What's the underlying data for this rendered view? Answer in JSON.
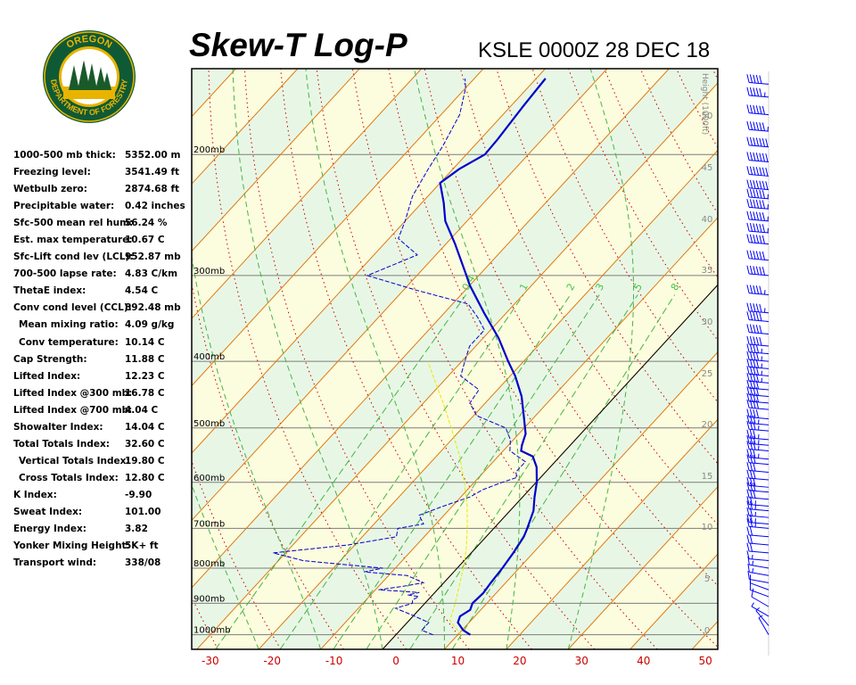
{
  "header": {
    "title": "Skew-T Log-P",
    "station_time": "KSLE 0000Z 28 DEC 18"
  },
  "logo": {
    "top_text": "OREGON",
    "bottom_text": "DEPARTMENT OF FORESTRY",
    "colors": {
      "ring": "#0f5a36",
      "gold": "#e8b400",
      "tree": "#1a5a2a"
    }
  },
  "indices": [
    {
      "label": "1000-500 mb thick:",
      "value": "5352.00 m"
    },
    {
      "label": "Freezing level:",
      "value": "3541.49 ft"
    },
    {
      "label": "Wetbulb zero:",
      "value": "2874.68 ft"
    },
    {
      "label": "Precipitable water:",
      "value": "0.42 inches"
    },
    {
      "label": "Sfc-500 mean rel hum:",
      "value": "56.24 %"
    },
    {
      "label": "Est. max temperature:",
      "value": "10.67 C"
    },
    {
      "label": "Sfc-Lift cond lev (LCL):",
      "value": "952.87 mb"
    },
    {
      "label": "700-500 lapse rate:",
      "value": "4.83 C/km"
    },
    {
      "label": "ThetaE index:",
      "value": "4.54 C"
    },
    {
      "label": "Conv cond level (CCL):",
      "value": "892.48 mb"
    },
    {
      "label": "Mean mixing ratio:",
      "value": "4.09 g/kg",
      "indent": true
    },
    {
      "label": "Conv temperature:",
      "value": "10.14 C",
      "indent": true
    },
    {
      "label": "Cap Strength:",
      "value": "11.88 C"
    },
    {
      "label": "Lifted Index:",
      "value": "12.23 C"
    },
    {
      "label": "Lifted Index @300 mb:",
      "value": "16.78 C"
    },
    {
      "label": "Lifted Index @700 mb:",
      "value": "4.04 C"
    },
    {
      "label": "Showalter Index:",
      "value": "14.04 C"
    },
    {
      "label": "Total Totals Index:",
      "value": "32.60 C"
    },
    {
      "label": "Vertical Totals Index:",
      "value": "19.80 C",
      "indent": true
    },
    {
      "label": "Cross Totals Index:",
      "value": "12.80 C",
      "indent": true
    },
    {
      "label": "K Index:",
      "value": "-9.90"
    },
    {
      "label": "Sweat Index:",
      "value": "101.00"
    },
    {
      "label": "Energy Index:",
      "value": "3.82"
    },
    {
      "label": "Yonker Mixing Height:",
      "value": "5K+ ft"
    },
    {
      "label": "Transport wind:",
      "value": "338/08"
    }
  ],
  "chart_data": {
    "type": "line",
    "x_axis": {
      "ticks": [
        "-30",
        "-20",
        "-10",
        "0",
        "10",
        "20",
        "30",
        "40",
        "50"
      ],
      "range": [
        -33,
        52
      ],
      "color": "#cc0000"
    },
    "pressure_axis": {
      "labels": [
        "200mb",
        "300mb",
        "400mb",
        "500mb",
        "600mb",
        "700mb",
        "800mb",
        "900mb",
        "1000mb"
      ],
      "range_mb": [
        1050,
        150
      ]
    },
    "height_axis": {
      "title": "Height (1000ft)",
      "ticks": [
        "0",
        "5",
        "10",
        "15",
        "20",
        "25",
        "30",
        "35",
        "40",
        "45",
        "50"
      ]
    },
    "mixing_ratio_labels": [
      "0.4",
      "1",
      "2",
      "3",
      "5",
      "8"
    ],
    "series": [
      {
        "type": "temperature",
        "color": "#0000cc",
        "points": [
          [
            1000,
            12
          ],
          [
            985,
            10.2
          ],
          [
            960,
            8.2
          ],
          [
            940,
            7.6
          ],
          [
            920,
            8.3
          ],
          [
            900,
            7.7
          ],
          [
            870,
            7.9
          ],
          [
            840,
            7.6
          ],
          [
            800,
            7.3
          ],
          [
            760,
            6.8
          ],
          [
            720,
            6.1
          ],
          [
            700,
            5.4
          ],
          [
            660,
            3.8
          ],
          [
            630,
            1.9
          ],
          [
            600,
            0.1
          ],
          [
            570,
            -2.2
          ],
          [
            550,
            -4.4
          ],
          [
            540,
            -7.1
          ],
          [
            530,
            -7.8
          ],
          [
            510,
            -8.9
          ],
          [
            480,
            -11.9
          ],
          [
            450,
            -15.1
          ],
          [
            420,
            -19.2
          ],
          [
            400,
            -22.5
          ],
          [
            370,
            -27.5
          ],
          [
            340,
            -33.6
          ],
          [
            310,
            -40.0
          ],
          [
            300,
            -42.0
          ],
          [
            270,
            -48.5
          ],
          [
            250,
            -53.5
          ],
          [
            235,
            -56.5
          ],
          [
            220,
            -60
          ],
          [
            210,
            -59
          ],
          [
            200,
            -57
          ],
          [
            190,
            -57.2
          ],
          [
            170,
            -58
          ],
          [
            155,
            -58.5
          ]
        ]
      },
      {
        "type": "dewpoint",
        "color": "#0000cc",
        "points": [
          [
            1000,
            6
          ],
          [
            985,
            3.5
          ],
          [
            960,
            3.5
          ],
          [
            935,
            -0.5
          ],
          [
            915,
            -4.0
          ],
          [
            900,
            -2.0
          ],
          [
            890,
            -2.5
          ],
          [
            880,
            -2.0
          ],
          [
            875,
            -4.0
          ],
          [
            868,
            -2.5
          ],
          [
            860,
            -9.5
          ],
          [
            850,
            -6.0
          ],
          [
            840,
            -3.3
          ],
          [
            820,
            -7.0
          ],
          [
            810,
            -14.5
          ],
          [
            800,
            -12.0
          ],
          [
            780,
            -26.0
          ],
          [
            760,
            -32.0
          ],
          [
            740,
            -21.0
          ],
          [
            720,
            -14.5
          ],
          [
            700,
            -15.5
          ],
          [
            690,
            -12.0
          ],
          [
            670,
            -14.0
          ],
          [
            650,
            -11.5
          ],
          [
            630,
            -8.5
          ],
          [
            615,
            -7.5
          ],
          [
            600,
            -5.5
          ],
          [
            590,
            -3.8
          ],
          [
            580,
            -4.8
          ],
          [
            560,
            -4.8
          ],
          [
            540,
            -8.9
          ],
          [
            520,
            -10.5
          ],
          [
            500,
            -13.0
          ],
          [
            480,
            -19.5
          ],
          [
            460,
            -22.5
          ],
          [
            440,
            -23.0
          ],
          [
            420,
            -28.0
          ],
          [
            400,
            -29.5
          ],
          [
            380,
            -31.0
          ],
          [
            360,
            -31.0
          ],
          [
            345,
            -34.0
          ],
          [
            330,
            -37.5
          ],
          [
            315,
            -48.0
          ],
          [
            300,
            -58.0
          ],
          [
            280,
            -53.0
          ],
          [
            265,
            -58.5
          ],
          [
            250,
            -60
          ],
          [
            230,
            -62.5
          ],
          [
            210,
            -64
          ],
          [
            195,
            -65
          ],
          [
            175,
            -67
          ],
          [
            160,
            -70
          ],
          [
            155,
            -71.5
          ]
        ]
      },
      {
        "type": "parcel",
        "color": "#e8e800",
        "points": [
          [
            1000,
            10.6
          ],
          [
            975,
            8.4
          ],
          [
            953,
            6.6
          ],
          [
            925,
            5.7
          ],
          [
            900,
            4.9
          ],
          [
            850,
            3.0
          ],
          [
            800,
            1.0
          ],
          [
            750,
            -1.4
          ],
          [
            700,
            -4.3
          ],
          [
            650,
            -7.6
          ],
          [
            600,
            -11.6
          ],
          [
            550,
            -16.2
          ],
          [
            500,
            -21.8
          ],
          [
            460,
            -26.8
          ],
          [
            430,
            -31.0
          ],
          [
            400,
            -35.5
          ]
        ]
      }
    ],
    "wind_barbs": [
      {
        "p": 1000,
        "dir": 330,
        "spd": 5
      },
      {
        "p": 970,
        "dir": 320,
        "spd": 5
      },
      {
        "p": 940,
        "dir": 300,
        "spd": 5
      },
      {
        "p": 910,
        "dir": 300,
        "spd": 10
      },
      {
        "p": 880,
        "dir": 290,
        "spd": 10
      },
      {
        "p": 860,
        "dir": 290,
        "spd": 10
      },
      {
        "p": 840,
        "dir": 280,
        "spd": 10
      },
      {
        "p": 820,
        "dir": 280,
        "spd": 15
      },
      {
        "p": 800,
        "dir": 280,
        "spd": 15
      },
      {
        "p": 780,
        "dir": 275,
        "spd": 15
      },
      {
        "p": 760,
        "dir": 275,
        "spd": 20
      },
      {
        "p": 740,
        "dir": 275,
        "spd": 20
      },
      {
        "p": 720,
        "dir": 275,
        "spd": 20
      },
      {
        "p": 700,
        "dir": 275,
        "spd": 25
      },
      {
        "p": 690,
        "dir": 275,
        "spd": 25
      },
      {
        "p": 675,
        "dir": 275,
        "spd": 25
      },
      {
        "p": 660,
        "dir": 275,
        "spd": 25
      },
      {
        "p": 650,
        "dir": 275,
        "spd": 25
      },
      {
        "p": 635,
        "dir": 275,
        "spd": 30
      },
      {
        "p": 620,
        "dir": 275,
        "spd": 30
      },
      {
        "p": 610,
        "dir": 275,
        "spd": 30
      },
      {
        "p": 595,
        "dir": 275,
        "spd": 30
      },
      {
        "p": 580,
        "dir": 275,
        "spd": 30
      },
      {
        "p": 565,
        "dir": 275,
        "spd": 30
      },
      {
        "p": 555,
        "dir": 275,
        "spd": 35
      },
      {
        "p": 540,
        "dir": 275,
        "spd": 35
      },
      {
        "p": 530,
        "dir": 275,
        "spd": 35
      },
      {
        "p": 520,
        "dir": 275,
        "spd": 35
      },
      {
        "p": 505,
        "dir": 275,
        "spd": 35
      },
      {
        "p": 495,
        "dir": 275,
        "spd": 35
      },
      {
        "p": 485,
        "dir": 275,
        "spd": 40
      },
      {
        "p": 470,
        "dir": 275,
        "spd": 40
      },
      {
        "p": 460,
        "dir": 275,
        "spd": 40
      },
      {
        "p": 450,
        "dir": 275,
        "spd": 40
      },
      {
        "p": 440,
        "dir": 275,
        "spd": 40
      },
      {
        "p": 430,
        "dir": 275,
        "spd": 45
      },
      {
        "p": 420,
        "dir": 275,
        "spd": 45
      },
      {
        "p": 410,
        "dir": 275,
        "spd": 45
      },
      {
        "p": 400,
        "dir": 275,
        "spd": 45
      },
      {
        "p": 390,
        "dir": 275,
        "spd": 45
      },
      {
        "p": 380,
        "dir": 275,
        "spd": 50
      },
      {
        "p": 365,
        "dir": 275,
        "spd": 50
      },
      {
        "p": 350,
        "dir": 275,
        "spd": 50
      },
      {
        "p": 340,
        "dir": 275,
        "spd": 55
      },
      {
        "p": 320,
        "dir": 275,
        "spd": 55
      },
      {
        "p": 300,
        "dir": 275,
        "spd": 60
      },
      {
        "p": 285,
        "dir": 275,
        "spd": 60
      },
      {
        "p": 270,
        "dir": 275,
        "spd": 60
      },
      {
        "p": 260,
        "dir": 275,
        "spd": 65
      },
      {
        "p": 250,
        "dir": 275,
        "spd": 65
      },
      {
        "p": 240,
        "dir": 275,
        "spd": 65
      },
      {
        "p": 232,
        "dir": 275,
        "spd": 65
      },
      {
        "p": 225,
        "dir": 275,
        "spd": 70
      },
      {
        "p": 215,
        "dir": 275,
        "spd": 70
      },
      {
        "p": 205,
        "dir": 275,
        "spd": 70
      },
      {
        "p": 195,
        "dir": 275,
        "spd": 70
      },
      {
        "p": 185,
        "dir": 275,
        "spd": 65
      },
      {
        "p": 175,
        "dir": 275,
        "spd": 60
      },
      {
        "p": 165,
        "dir": 275,
        "spd": 55
      },
      {
        "p": 158,
        "dir": 275,
        "spd": 50
      }
    ]
  }
}
